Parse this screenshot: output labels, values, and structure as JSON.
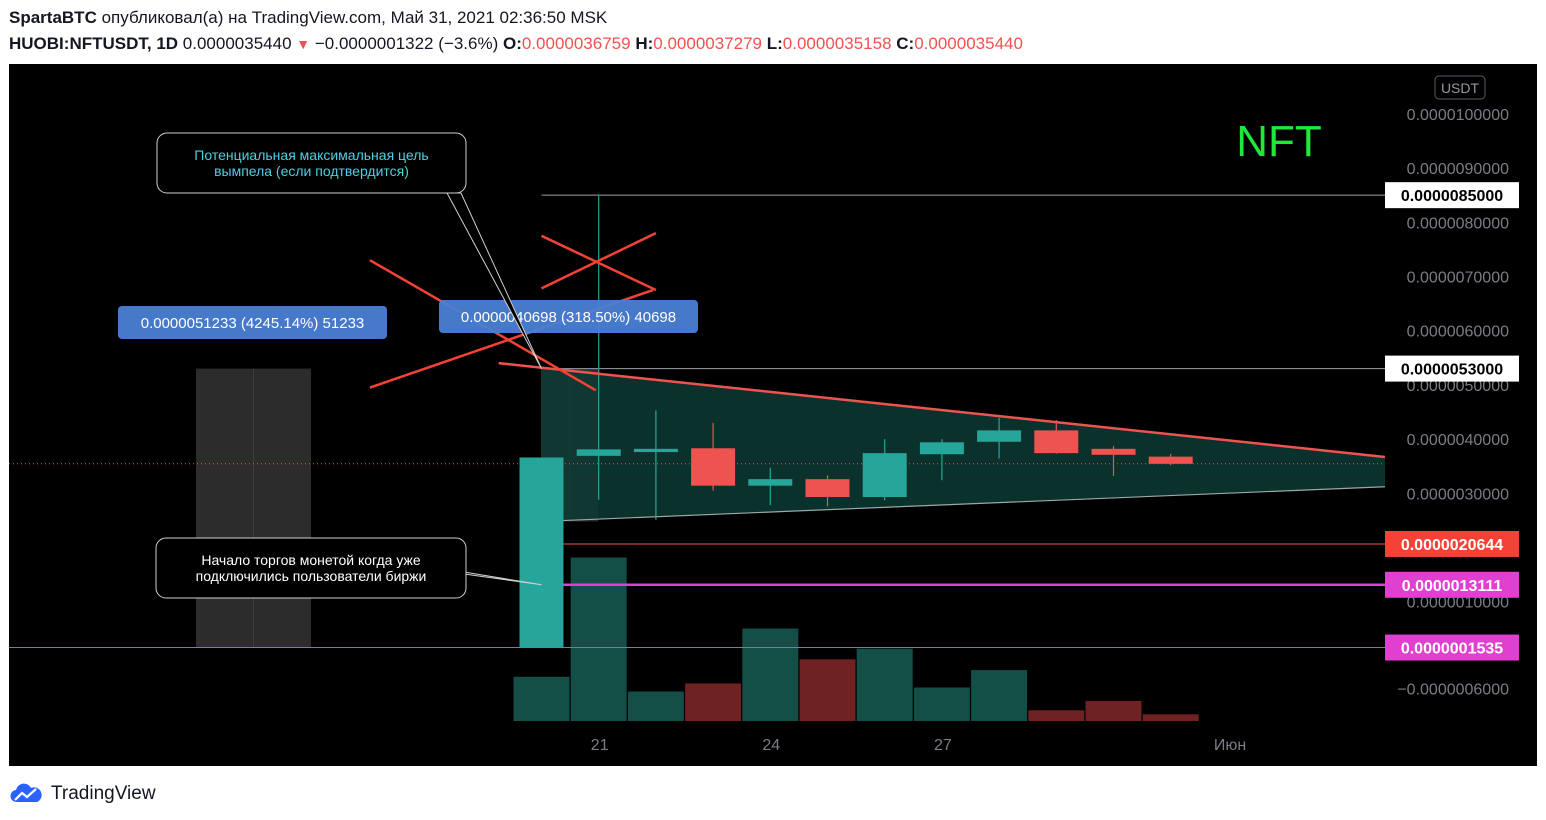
{
  "header": {
    "author": "SpartaBTC",
    "published_text": "опубликовал(а) на TradingView.com, Май 31, 2021 02:36:50 MSK",
    "symbol": "HUOBI:NFTUSDT, 1D",
    "last": "0.0000035440",
    "change": "−0.0000001322 (−3.6%)",
    "o_label": "O:",
    "o": "0.0000036759",
    "h_label": "H:",
    "h": "0.0000037279",
    "l_label": "L:",
    "l": "0.0000035158",
    "c_label": "C:",
    "c": "0.0000035440",
    "change_direction_icon": "triangle-down-icon"
  },
  "footer": {
    "brand": "TradingView",
    "logo_icon": "tradingview-cloud-icon"
  },
  "colors": {
    "bull": "#26a69a",
    "bear": "#ef5350",
    "magenta": "#e040d0",
    "triangle_fill": "#0c3a33",
    "text_green": "#1ee83a"
  },
  "chart_data": {
    "type": "candlestick",
    "symbol": "HUOBI:NFTUSDT",
    "interval": "1D",
    "watermark": "NFT",
    "currency_badge": "USDT",
    "x_ticks": [
      {
        "label": "21",
        "day": 21
      },
      {
        "label": "24",
        "day": 24
      },
      {
        "label": "27",
        "day": 27
      },
      {
        "label": "Июн",
        "day": 32
      }
    ],
    "y_ticks": [
      {
        "value": 1e-05,
        "label": "0.0000100000"
      },
      {
        "value": 9e-06,
        "label": "0.0000090000"
      },
      {
        "value": 8e-06,
        "label": "0.0000080000"
      },
      {
        "value": 7e-06,
        "label": "0.0000070000"
      },
      {
        "value": 6e-06,
        "label": "0.0000060000"
      },
      {
        "value": 5e-06,
        "label": "0.0000050000"
      },
      {
        "value": 4e-06,
        "label": "0.0000040000"
      },
      {
        "value": 3e-06,
        "label": "0.0000030000"
      },
      {
        "value": 1e-06,
        "label": "0.0000010000"
      },
      {
        "value": -6e-07,
        "label": "−0.0000006000"
      }
    ],
    "ylim": [
      -1.2e-06,
      1.09e-05
    ],
    "xlim": [
      15.8,
      35.6
    ],
    "candles": [
      {
        "day": 20,
        "open": 1.535e-07,
        "high": 3.66e-06,
        "low": 1.535e-07,
        "close": 3.66e-06
      },
      {
        "day": 21,
        "open": 3.69e-06,
        "high": 8.5e-06,
        "low": 2.88e-06,
        "close": 3.81e-06
      },
      {
        "day": 22,
        "open": 3.76e-06,
        "high": 4.53e-06,
        "low": 2.51e-06,
        "close": 3.82e-06
      },
      {
        "day": 23,
        "open": 3.83e-06,
        "high": 4.3e-06,
        "low": 3.05e-06,
        "close": 3.14e-06
      },
      {
        "day": 24,
        "open": 3.14e-06,
        "high": 3.47e-06,
        "low": 2.78e-06,
        "close": 3.26e-06
      },
      {
        "day": 25,
        "open": 3.26e-06,
        "high": 3.33e-06,
        "low": 2.76e-06,
        "close": 2.93e-06
      },
      {
        "day": 26,
        "open": 2.93e-06,
        "high": 4e-06,
        "low": 2.87e-06,
        "close": 3.74e-06
      },
      {
        "day": 27,
        "open": 3.72e-06,
        "high": 4e-06,
        "low": 3.24e-06,
        "close": 3.94e-06
      },
      {
        "day": 28,
        "open": 3.95e-06,
        "high": 4.39e-06,
        "low": 3.64e-06,
        "close": 4.16e-06
      },
      {
        "day": 29,
        "open": 4.16e-06,
        "high": 4.35e-06,
        "low": 3.73e-06,
        "close": 3.74e-06
      },
      {
        "day": 30,
        "open": 3.82e-06,
        "high": 3.87e-06,
        "low": 3.32e-06,
        "close": 3.71e-06
      },
      {
        "day": 31,
        "open": 3.6759e-06,
        "high": 3.7279e-06,
        "low": 3.5158e-06,
        "close": 3.544e-06
      }
    ],
    "volume": [
      {
        "day": 20,
        "value": 0.33,
        "direction": "up"
      },
      {
        "day": 21,
        "value": 1.22,
        "direction": "up"
      },
      {
        "day": 22,
        "value": 0.22,
        "direction": "up"
      },
      {
        "day": 23,
        "value": 0.28,
        "direction": "down"
      },
      {
        "day": 24,
        "value": 0.69,
        "direction": "up"
      },
      {
        "day": 25,
        "value": 0.46,
        "direction": "down"
      },
      {
        "day": 26,
        "value": 0.54,
        "direction": "up"
      },
      {
        "day": 27,
        "value": 0.25,
        "direction": "up"
      },
      {
        "day": 28,
        "value": 0.38,
        "direction": "up"
      },
      {
        "day": 29,
        "value": 0.08,
        "direction": "down"
      },
      {
        "day": 30,
        "value": 0.15,
        "direction": "down"
      },
      {
        "day": 31,
        "value": 0.05,
        "direction": "down"
      }
    ],
    "price_labels": [
      {
        "value": 8.5e-06,
        "label": "0.0000085000",
        "style": "white"
      },
      {
        "value": 5.3e-06,
        "label": "0.0000053000",
        "style": "white"
      },
      {
        "value": 2.0644e-06,
        "label": "0.0000020644",
        "style": "red"
      },
      {
        "value": 1.3111e-06,
        "label": "0.0000013111",
        "style": "magenta"
      },
      {
        "value": 1.535e-07,
        "label": "0.0000001535",
        "style": "magenta"
      }
    ],
    "current_price": 3.544e-06,
    "triangle": {
      "upper": [
        [
          20,
          5.3e-06
        ],
        [
          35.6,
          3.67e-06
        ]
      ],
      "lower": [
        [
          20,
          2.48e-06
        ],
        [
          35.6,
          3.12e-06
        ]
      ]
    },
    "upper_trend_start": [
      19.25,
      5.4e-06
    ],
    "measure_boxes": [
      {
        "from_day": 17,
        "to_day": 18.95,
        "low": 1.535e-07,
        "high": 5.3e-06,
        "label": "0.0000051233 (4245.14%) 51233"
      },
      {
        "from_day": 20,
        "to_day": 21,
        "low": 2.48e-06,
        "high": 5.3e-06,
        "label": "0.0000040698 (318.50%) 40698"
      }
    ],
    "hlines": [
      {
        "value": 8.5e-06,
        "from_day": 20,
        "color": "#9aa0a6"
      },
      {
        "value": 5.3e-06,
        "from_day": 20,
        "color": "#9aa0a6"
      },
      {
        "value": 2.0644e-06,
        "from_day": 20,
        "color": "#ef5350"
      },
      {
        "value": 1.3111e-06,
        "from_day": 20,
        "color": "#e040d0"
      },
      {
        "value": 1.535e-07,
        "from_day": 15.8,
        "color": "#e040d0"
      }
    ],
    "annotations": [
      {
        "text": [
          "Потенциальная максимальная цель",
          "вымпела (если подтвердится)"
        ],
        "color": "#4dd0e1",
        "pointer": [
          20,
          5.3e-06
        ]
      },
      {
        "text": [
          "Начало торгов монетой когда уже",
          "подключились пользователи биржи"
        ],
        "color": "#ffffff",
        "pointer": [
          20,
          1.3111e-06
        ]
      }
    ],
    "crosses": [
      {
        "x1": 17,
        "y1": 7.3e-06,
        "x2": 20.95,
        "y2": 4.9e-06
      },
      {
        "x1": 17,
        "y1": 4.95e-06,
        "x2": 21.95,
        "y2": 6.75e-06
      },
      {
        "x1": 20,
        "y1": 7.75e-06,
        "x2": 22,
        "y2": 6.75e-06
      },
      {
        "x1": 20,
        "y1": 6.78e-06,
        "x2": 22,
        "y2": 7.8e-06
      }
    ]
  }
}
